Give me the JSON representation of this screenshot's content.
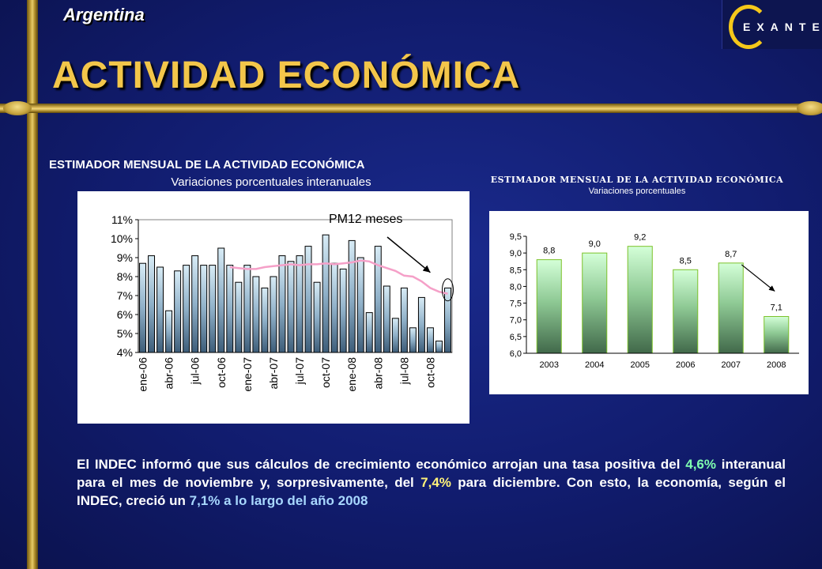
{
  "header": {
    "country": "Argentina",
    "title": "ACTIVIDAD ECONÓMICA",
    "logo_text": "EXANTE"
  },
  "chart_data": [
    {
      "type": "bar",
      "title": "ESTIMADOR MENSUAL DE LA ACTIVIDAD ECONÓMICA",
      "subtitle": "Variaciones porcentuales interanuales",
      "annotation": "PM12 meses",
      "ylim": [
        4,
        11
      ],
      "yticks": [
        "4%",
        "5%",
        "6%",
        "7%",
        "8%",
        "9%",
        "10%",
        "11%"
      ],
      "categories": [
        "ene-06",
        "feb-06",
        "mar-06",
        "abr-06",
        "may-06",
        "jun-06",
        "jul-06",
        "ago-06",
        "sep-06",
        "oct-06",
        "nov-06",
        "dic-06",
        "ene-07",
        "feb-07",
        "mar-07",
        "abr-07",
        "may-07",
        "jun-07",
        "jul-07",
        "ago-07",
        "sep-07",
        "oct-07",
        "nov-07",
        "dic-07",
        "ene-08",
        "feb-08",
        "mar-08",
        "abr-08",
        "may-08",
        "jun-08",
        "jul-08",
        "ago-08",
        "sep-08",
        "oct-08",
        "nov-08",
        "dic-08"
      ],
      "tick_labels": [
        "ene-06",
        "abr-06",
        "jul-06",
        "oct-06",
        "ene-07",
        "abr-07",
        "jul-07",
        "oct-07",
        "ene-08",
        "abr-08",
        "jul-08",
        "oct-08"
      ],
      "series": [
        {
          "values": [
            8.7,
            9.1,
            8.5,
            6.2,
            8.3,
            8.6,
            9.1,
            8.6,
            8.6,
            9.5,
            8.6,
            7.7,
            8.6,
            8.0,
            7.4,
            8.0,
            9.1,
            8.8,
            9.1,
            9.6,
            7.7,
            10.2,
            8.7,
            8.4,
            9.9,
            9.0,
            6.1,
            9.6,
            7.5,
            5.8,
            7.4,
            5.3,
            6.9,
            5.3,
            4.6,
            7.4
          ]
        },
        {
          "name": "PM12 meses",
          "values": [
            null,
            null,
            null,
            null,
            null,
            null,
            null,
            null,
            null,
            null,
            8.5,
            8.45,
            8.4,
            8.4,
            8.5,
            8.55,
            8.6,
            8.65,
            8.6,
            8.65,
            8.65,
            8.7,
            8.65,
            8.7,
            8.75,
            8.85,
            8.8,
            8.6,
            8.45,
            8.3,
            8.05,
            8.0,
            7.75,
            7.4,
            7.2,
            7.1
          ]
        }
      ]
    },
    {
      "type": "bar",
      "title": "ESTIMADOR MENSUAL DE LA ACTIVIDAD ECONÓMICA",
      "subtitle": "Variaciones porcentuales",
      "ylim": [
        6.0,
        9.5
      ],
      "yticks": [
        "6,0",
        "6,5",
        "7,0",
        "7,5",
        "8,0",
        "8,5",
        "9,0",
        "9,5"
      ],
      "categories": [
        "2003",
        "2004",
        "2005",
        "2006",
        "2007",
        "2008"
      ],
      "values": [
        8.8,
        9.0,
        9.2,
        8.5,
        8.7,
        7.1
      ],
      "data_labels": [
        "8,8",
        "9,0",
        "9,2",
        "8,5",
        "8,7",
        "7,1"
      ]
    }
  ],
  "paragraph": {
    "p1": "El INDEC informó que sus cálculos de crecimiento económico arrojan una tasa positiva del ",
    "v1": "4,6%",
    "p2": " interanual para el mes de noviembre y, sorpresivamente, del ",
    "v2": "7,4%",
    "p3": " para diciembre. Con esto, la economía, según el INDEC, creció un ",
    "v3": "7,1% a lo largo del año 2008"
  }
}
